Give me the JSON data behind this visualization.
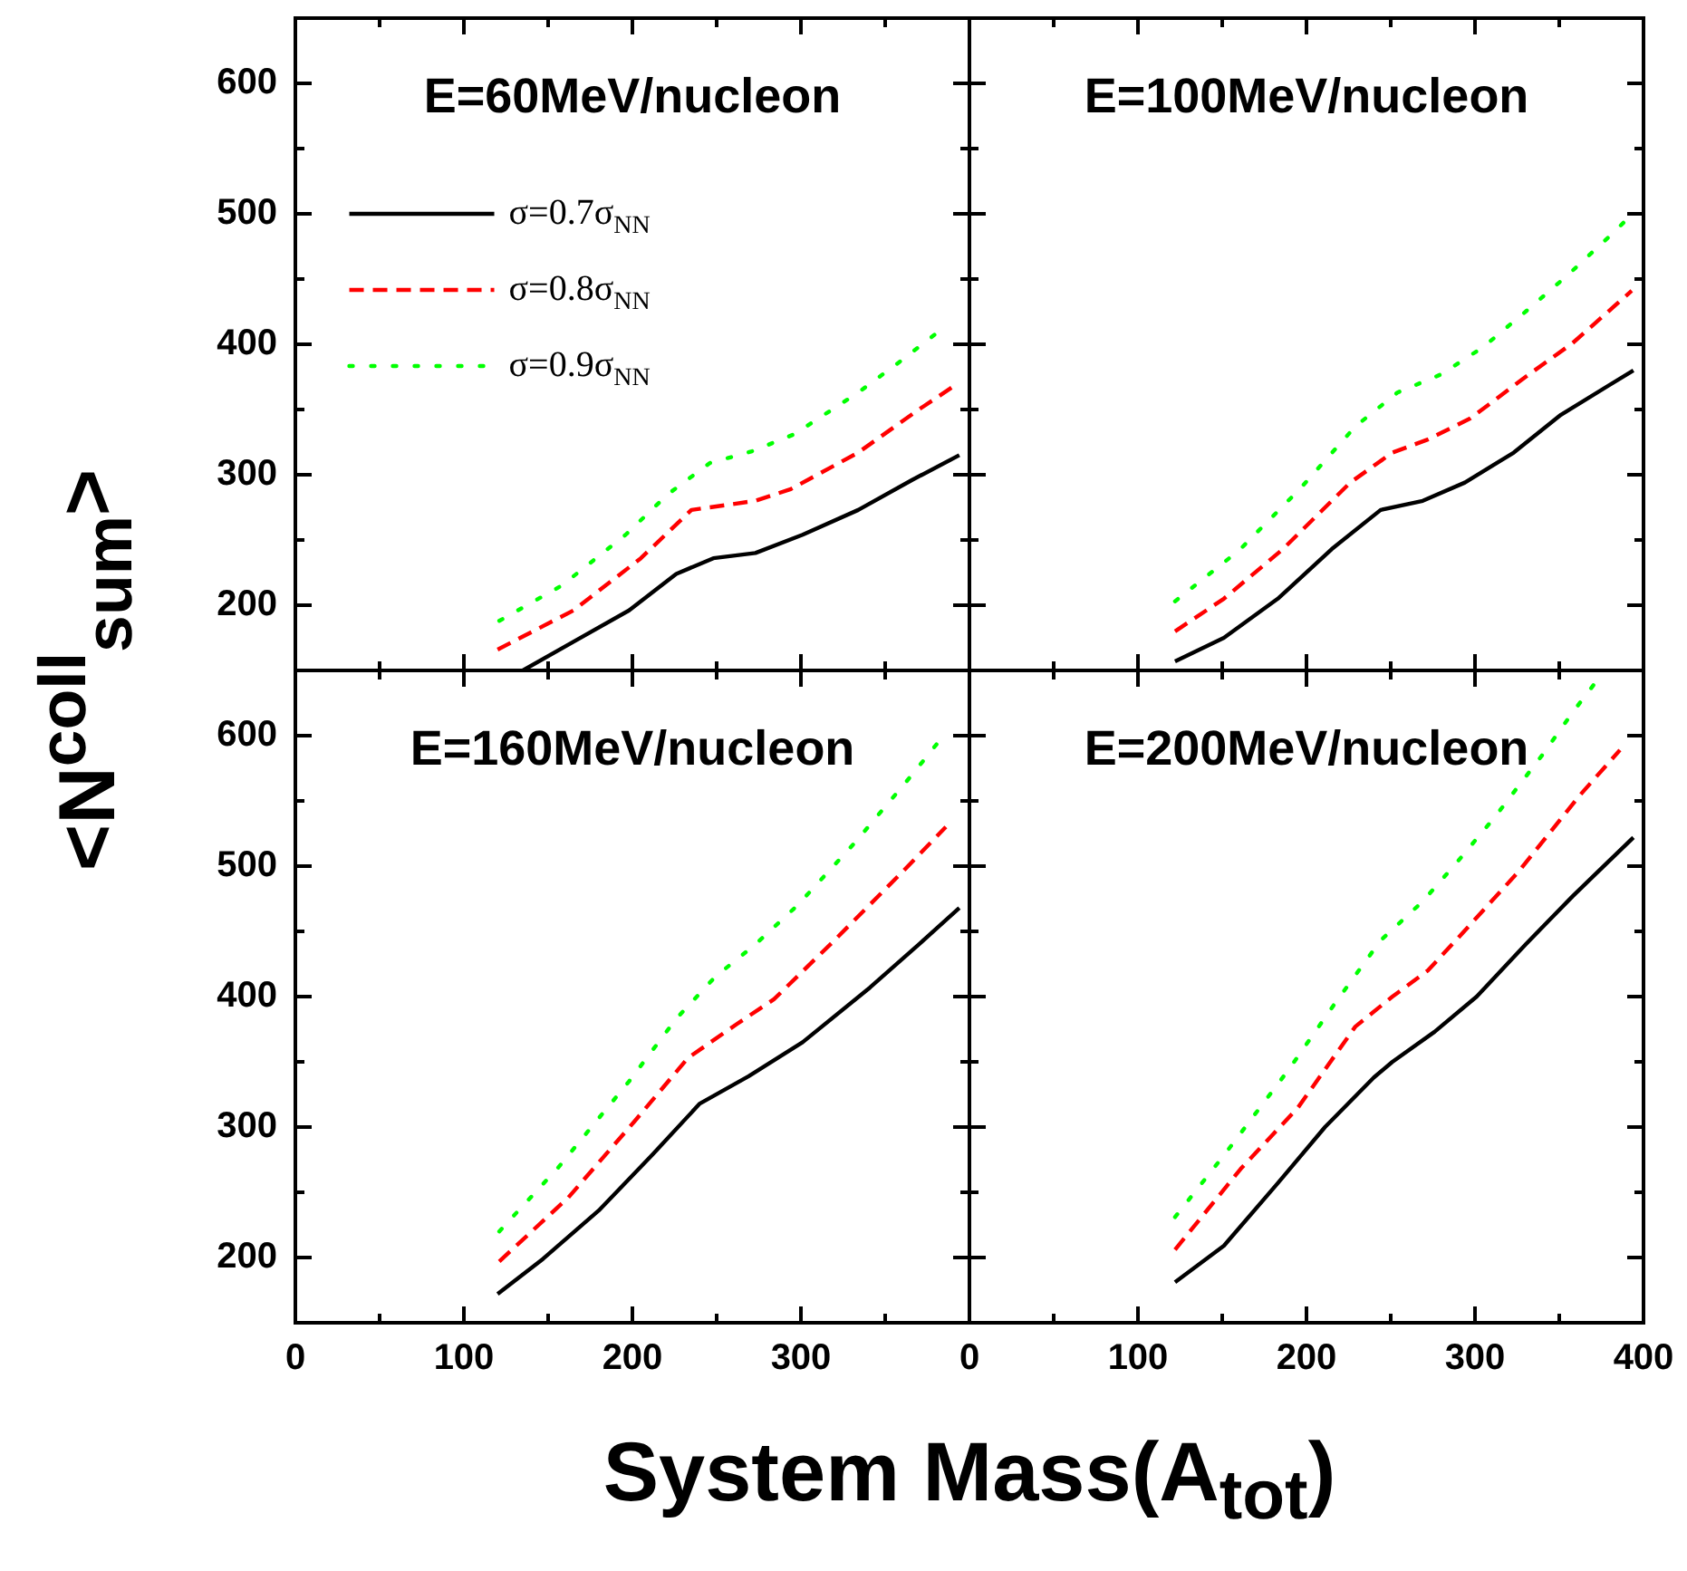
{
  "chart_data": [
    {
      "type": "line",
      "title": "E=60MeV/nucleon",
      "ylabel": "<N$^{coll}$$_{sum}$>",
      "legend": "top left",
      "marker": "none",
      "tick_labels": "y",
      "xlim": [
        0,
        400
      ],
      "xticks": [
        0,
        {
          "value": 50,
          "label": null
        },
        {
          "value": 100,
          "label": null
        },
        {
          "value": 150,
          "label": null
        },
        {
          "value": 200,
          "label": null
        },
        {
          "value": 250,
          "label": null
        },
        {
          "value": 300,
          "label": null
        },
        {
          "value": 350,
          "label": null
        },
        {
          "value": 400,
          "label": null
        }
      ],
      "ylim": [
        150,
        650
      ],
      "yticks": [
        200,
        {
          "value": 250,
          "label": null
        },
        300,
        {
          "value": 350,
          "label": null
        },
        400,
        {
          "value": 450,
          "label": null
        },
        500,
        {
          "value": 550,
          "label": null
        },
        600
      ],
      "series": [
        {
          "name": "σ=0.7σ$_{NN}$",
          "color": "#000000",
          "line_style": "solid",
          "x": [
            135,
            165,
            198,
            226,
            248,
            273,
            301,
            334,
            366,
            394
          ],
          "values": [
            150,
            172,
            196,
            224,
            236,
            240,
            254,
            273,
            296,
            315
          ]
        },
        {
          "name": "σ=0.8σ$_{NN}$",
          "color": "#ff0000",
          "line_style": "dashed",
          "x": [
            120,
            165,
            205,
            235,
            273,
            294,
            334,
            370,
            392
          ],
          "values": [
            166,
            196,
            236,
            273,
            280,
            289,
            317,
            350,
            369
          ]
        },
        {
          "name": "σ=0.9σ$_{NN}$",
          "color": "#00ff00",
          "line_style": "dotted",
          "x": [
            121,
            158,
            196,
            221,
            246,
            271,
            296,
            334,
            358,
            383
          ],
          "values": [
            188,
            215,
            254,
            285,
            309,
            318,
            331,
            363,
            386,
            411
          ]
        }
      ]
    },
    {
      "type": "line",
      "title": "E=100MeV/nucleon",
      "marker": "none",
      "tick_labels": false,
      "xlim": [
        0,
        400
      ],
      "xticks": [
        0,
        {
          "value": 50,
          "label": null
        },
        {
          "value": 100,
          "label": null
        },
        {
          "value": 150,
          "label": null
        },
        {
          "value": 200,
          "label": null
        },
        {
          "value": 250,
          "label": null
        },
        {
          "value": 300,
          "label": null
        },
        {
          "value": 350,
          "label": null
        },
        {
          "value": 400,
          "label": null
        }
      ],
      "ylim": [
        150,
        650
      ],
      "yticks": [
        {
          "value": 200,
          "label": null
        },
        {
          "value": 250,
          "label": null
        },
        {
          "value": 300,
          "label": null
        },
        {
          "value": 350,
          "label": null
        },
        {
          "value": 400,
          "label": null
        },
        {
          "value": 450,
          "label": null
        },
        {
          "value": 500,
          "label": null
        },
        {
          "value": 550,
          "label": null
        },
        {
          "value": 600,
          "label": null
        }
      ],
      "series": [
        {
          "color": "#000000",
          "line_style": "solid",
          "x": [
            122,
            151,
            183,
            215,
            244,
            269,
            294,
            323,
            351,
            394
          ],
          "values": [
            157,
            175,
            205,
            243,
            273,
            280,
            294,
            317,
            346,
            380
          ]
        },
        {
          "color": "#ff0000",
          "line_style": "dashed",
          "x": [
            122,
            151,
            186,
            226,
            251,
            272,
            297,
            330,
            358,
            393
          ],
          "values": [
            180,
            205,
            243,
            294,
            317,
            327,
            343,
            375,
            401,
            441
          ]
        },
        {
          "color": "#00ff00",
          "line_style": "dotted",
          "x": [
            122,
            160,
            196,
            229,
            254,
            280,
            305,
            330,
            355,
            380,
            392
          ],
          "values": [
            203,
            242,
            289,
            337,
            363,
            377,
            398,
            425,
            453,
            483,
            498
          ]
        }
      ]
    },
    {
      "type": "line",
      "title": "E=160MeV/nucleon",
      "xlabel": "System Mass(A$_{tot}$)",
      "marker": "none",
      "xlim": [
        0,
        400
      ],
      "xticks": [
        0,
        {
          "value": 50,
          "label": null
        },
        100,
        {
          "value": 150,
          "label": null
        },
        200,
        {
          "value": 250,
          "label": null
        },
        300,
        {
          "value": 350,
          "label": null
        },
        {
          "value": 400,
          "label": null
        }
      ],
      "ylim": [
        150,
        650
      ],
      "yticks": [
        200,
        {
          "value": 250,
          "label": null
        },
        300,
        {
          "value": 350,
          "label": null
        },
        400,
        {
          "value": 450,
          "label": null
        },
        500,
        {
          "value": 550,
          "label": null
        },
        600
      ],
      "series": [
        {
          "color": "#000000",
          "line_style": "solid",
          "x": [
            120,
            147,
            180,
            212,
            240,
            269,
            301,
            341,
            370,
            394
          ],
          "values": [
            172,
            199,
            236,
            279,
            318,
            339,
            365,
            407,
            440,
            468
          ]
        },
        {
          "color": "#ff0000",
          "line_style": "dashed",
          "x": [
            121,
            162,
            201,
            233,
            262,
            284,
            319,
            359,
            386
          ],
          "values": [
            197,
            246,
            304,
            353,
            379,
            398,
            442,
            494,
            530
          ]
        },
        {
          "color": "#00ff00",
          "line_style": "dotted",
          "x": [
            121,
            156,
            198,
            226,
            249,
            273,
            298,
            332,
            364,
            384
          ],
          "values": [
            220,
            269,
            335,
            383,
            415,
            440,
            470,
            518,
            567,
            599
          ]
        }
      ]
    },
    {
      "type": "line",
      "title": "E=200MeV/nucleon",
      "marker": "none",
      "tick_labels": "x",
      "xlim": [
        0,
        400
      ],
      "xticks": [
        0,
        {
          "value": 50,
          "label": null
        },
        100,
        {
          "value": 150,
          "label": null
        },
        200,
        {
          "value": 250,
          "label": null
        },
        300,
        {
          "value": 350,
          "label": null
        },
        400
      ],
      "ylim": [
        150,
        650
      ],
      "yticks": [
        {
          "value": 200,
          "label": null
        },
        {
          "value": 250,
          "label": null
        },
        {
          "value": 300,
          "label": null
        },
        {
          "value": 350,
          "label": null
        },
        {
          "value": 400,
          "label": null
        },
        {
          "value": 450,
          "label": null
        },
        {
          "value": 500,
          "label": null
        },
        {
          "value": 550,
          "label": null
        },
        {
          "value": 600,
          "label": null
        }
      ],
      "series": [
        {
          "color": "#000000",
          "line_style": "solid",
          "x": [
            122,
            151,
            183,
            211,
            240,
            251,
            276,
            301,
            330,
            358,
            394
          ],
          "values": [
            181,
            209,
            257,
            300,
            338,
            350,
            373,
            400,
            440,
            477,
            522
          ]
        },
        {
          "color": "#ff0000",
          "line_style": "dashed",
          "x": [
            122,
            161,
            195,
            229,
            251,
            272,
            290,
            326,
            362,
            386
          ],
          "values": [
            206,
            268,
            315,
            377,
            400,
            420,
            445,
            496,
            554,
            589
          ]
        },
        {
          "color": "#00ff00",
          "line_style": "dotted",
          "x": [
            122,
            152,
            190,
            217,
            244,
            269,
            290,
            312,
            341,
            358,
            374
          ],
          "values": [
            231,
            280,
            345,
            395,
            443,
            473,
            504,
            538,
            587,
            618,
            645
          ]
        }
      ]
    }
  ]
}
